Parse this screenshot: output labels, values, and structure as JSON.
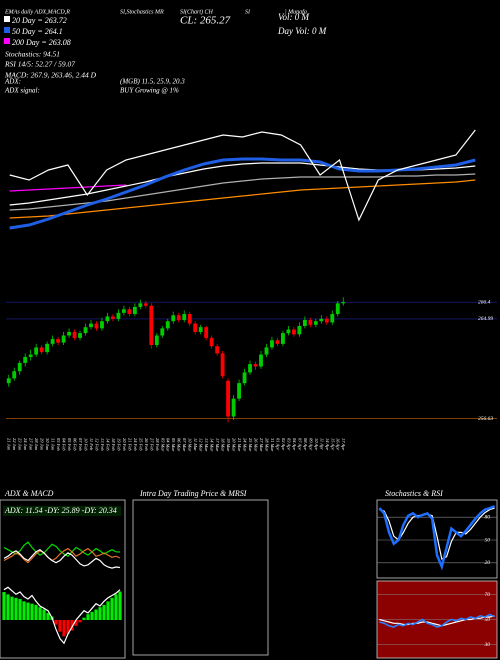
{
  "chart_data": [
    {
      "type": "line",
      "background": "#000000",
      "ylim": [
        255,
        270
      ],
      "annotations": [
        "EMAs daily ADX,MACD,R",
        "SI,Stochastics MR",
        "SI(Chart) CH",
        "SI",
        "| Munafa",
        "20 Day = 263.72",
        "50 Day = 264.1",
        "200 Day = 263.08",
        "Stochastics: 94.51",
        "RSI 14/5: 52.27 / 59.07",
        "MACD: 267.9, 263.46, 2.44 D",
        "ADX:",
        "ADX signal:",
        "(MGB) 11.5, 25.9, 20.3",
        "BUY Growing @ 1%",
        "CL: 265.27",
        "Vol: 0 M",
        "Day Vol: 0 M"
      ],
      "series": [
        {
          "color": "#ff00ff",
          "values": [
            260.4,
            260.5,
            260.6,
            260.7,
            260.8,
            260.9,
            261.0,
            null,
            null,
            null,
            null,
            null,
            null,
            null,
            null,
            null,
            null,
            null,
            null,
            null,
            null,
            null,
            null,
            null,
            null
          ]
        },
        {
          "color": "#ff8c00",
          "values": [
            257.7,
            257.8,
            257.9,
            258.1,
            258.3,
            258.5,
            258.7,
            258.9,
            259.1,
            259.3,
            259.5,
            259.7,
            259.9,
            260.1,
            260.3,
            260.5,
            260.6,
            260.7,
            260.8,
            260.9,
            261.0,
            261.1,
            261.2,
            261.3,
            261.5
          ]
        },
        {
          "color": "#b0b0b0",
          "values": [
            258.5,
            258.6,
            258.8,
            259.0,
            259.2,
            259.4,
            259.7,
            260.0,
            260.3,
            260.6,
            260.9,
            261.2,
            261.4,
            261.6,
            261.7,
            261.8,
            261.8,
            261.8,
            261.8,
            261.8,
            261.9,
            261.9,
            262.0,
            262.0,
            262.1
          ]
        },
        {
          "color": "#ffffff",
          "values": [
            259.0,
            259.2,
            259.5,
            259.8,
            260.1,
            260.5,
            260.9,
            261.3,
            261.8,
            262.2,
            262.6,
            262.9,
            263.1,
            263.2,
            263.2,
            263.2,
            263.0,
            262.8,
            262.6,
            262.5,
            262.5,
            262.5,
            262.6,
            262.7,
            262.9
          ]
        },
        {
          "color": "#1e5fe6",
          "values": [
            256.7,
            257.0,
            257.6,
            258.3,
            259.0,
            259.6,
            260.3,
            261.0,
            261.8,
            262.5,
            263.1,
            263.5,
            263.6,
            263.6,
            263.5,
            263.5,
            263.3,
            262.6,
            262.4,
            262.4,
            262.5,
            262.6,
            262.8,
            263.0,
            263.5
          ]
        },
        {
          "color": "#ffffff",
          "values": [
            262.0,
            261.5,
            262.5,
            263.0,
            260.0,
            262.5,
            263.5,
            264.0,
            264.5,
            265.0,
            265.5,
            266.0,
            265.8,
            266.3,
            266.0,
            265.0,
            262.0,
            263.5,
            257.5,
            261.5,
            262.5,
            263.0,
            263.5,
            264.0,
            266.5
          ]
        }
      ]
    },
    {
      "type": "candlestick",
      "background": "#000000",
      "up_color": "#00cc00",
      "down_color": "#ff0000",
      "ylim": [
        255.5,
        267
      ],
      "yticks": [
        266.4,
        264.99,
        256.63
      ],
      "categories": [
        "21 Jan",
        "22 Jan",
        "23 Jan",
        "24 Jan",
        "27 Jan",
        "28 Jan",
        "29 Jan",
        "30 Jan",
        "31 Jan",
        "03 Feb",
        "04 Feb",
        "05 Feb",
        "06 Feb",
        "07 Feb",
        "10 Feb",
        "11 Feb",
        "12 Feb",
        "13 Feb",
        "14 Feb",
        "18 Feb",
        "19 Feb",
        "20 Feb",
        "21 Feb",
        "24 Feb",
        "25 Feb",
        "26 Feb",
        "27 Feb",
        "28 Feb",
        "03 Mar",
        "04 Mar",
        "05 Mar",
        "06 Mar",
        "07 Mar",
        "10 Mar",
        "11 Mar",
        "12 Mar",
        "13 Mar",
        "14 Mar",
        "17 Mar",
        "18 Mar",
        "19 Mar",
        "20 Mar",
        "21 Mar",
        "24 Mar",
        "25 Mar",
        "26 Mar",
        "27 Mar",
        "28 Mar",
        "31 Mar",
        "01 Apr",
        "02 Apr",
        "03 Apr",
        "04 Apr",
        "07 Apr",
        "08 Apr",
        "09 Apr",
        "10 Apr",
        "11 Apr",
        "14 Apr",
        "15 Apr",
        "16 Apr",
        "17 Apr"
      ],
      "candles": [
        [
          259.6,
          260.3,
          259.3,
          260.0
        ],
        [
          260.0,
          260.9,
          259.8,
          260.6
        ],
        [
          260.6,
          261.5,
          260.3,
          261.3
        ],
        [
          261.3,
          262.1,
          261.0,
          261.8
        ],
        [
          261.8,
          262.4,
          261.5,
          262.0
        ],
        [
          262.0,
          262.9,
          261.8,
          262.6
        ],
        [
          262.6,
          262.8,
          262.0,
          262.2
        ],
        [
          262.2,
          263.1,
          262.0,
          262.9
        ],
        [
          262.9,
          263.6,
          262.7,
          263.3
        ],
        [
          263.3,
          263.5,
          262.8,
          263.0
        ],
        [
          263.0,
          263.9,
          262.8,
          263.6
        ],
        [
          263.6,
          264.2,
          263.4,
          263.9
        ],
        [
          263.9,
          264.1,
          263.2,
          263.4
        ],
        [
          263.4,
          264.0,
          263.2,
          263.8
        ],
        [
          263.8,
          264.6,
          263.6,
          264.3
        ],
        [
          264.3,
          264.9,
          264.1,
          264.6
        ],
        [
          264.6,
          264.8,
          264.0,
          264.2
        ],
        [
          264.2,
          265.1,
          264.0,
          264.8
        ],
        [
          264.8,
          265.5,
          264.6,
          265.2
        ],
        [
          265.2,
          265.4,
          264.8,
          265.0
        ],
        [
          265.0,
          265.8,
          264.8,
          265.5
        ],
        [
          265.5,
          266.1,
          265.3,
          265.8
        ],
        [
          265.8,
          266.0,
          265.2,
          265.4
        ],
        [
          265.4,
          266.3,
          265.2,
          266.0
        ],
        [
          266.0,
          266.6,
          265.8,
          266.3
        ],
        [
          266.3,
          266.5,
          265.9,
          266.1
        ],
        [
          266.1,
          266.3,
          262.5,
          262.8
        ],
        [
          262.8,
          263.8,
          262.6,
          263.6
        ],
        [
          263.6,
          264.4,
          263.4,
          264.2
        ],
        [
          264.2,
          265.0,
          264.0,
          264.8
        ],
        [
          264.8,
          265.6,
          264.6,
          265.3
        ],
        [
          265.3,
          265.5,
          264.7,
          264.9
        ],
        [
          264.9,
          265.7,
          264.7,
          265.4
        ],
        [
          265.4,
          265.6,
          264.4,
          264.6
        ],
        [
          264.6,
          264.8,
          263.7,
          263.9
        ],
        [
          263.9,
          264.5,
          263.7,
          264.3
        ],
        [
          264.3,
          264.4,
          263.2,
          263.4
        ],
        [
          263.4,
          263.6,
          262.5,
          262.7
        ],
        [
          262.7,
          262.9,
          261.9,
          262.1
        ],
        [
          262.1,
          262.3,
          260.0,
          260.2
        ],
        [
          259.8,
          260.0,
          256.3,
          256.8
        ],
        [
          256.8,
          258.6,
          256.5,
          258.3
        ],
        [
          258.3,
          259.9,
          258.1,
          259.6
        ],
        [
          259.6,
          260.8,
          259.4,
          260.5
        ],
        [
          260.5,
          261.5,
          260.3,
          261.2
        ],
        [
          261.2,
          261.4,
          260.7,
          261.0
        ],
        [
          261.0,
          262.3,
          260.8,
          262.0
        ],
        [
          262.0,
          262.9,
          261.8,
          262.6
        ],
        [
          262.6,
          263.5,
          262.4,
          263.2
        ],
        [
          263.2,
          263.4,
          262.7,
          262.9
        ],
        [
          262.9,
          264.0,
          262.7,
          263.8
        ],
        [
          263.8,
          264.4,
          263.6,
          264.1
        ],
        [
          264.1,
          264.3,
          263.5,
          263.7
        ],
        [
          263.7,
          264.7,
          263.5,
          264.4
        ],
        [
          264.4,
          265.2,
          264.2,
          264.9
        ],
        [
          264.9,
          265.1,
          264.3,
          264.5
        ],
        [
          264.5,
          265.0,
          264.3,
          264.8
        ],
        [
          264.8,
          265.3,
          264.6,
          265.0
        ],
        [
          265.0,
          265.2,
          264.5,
          264.7
        ],
        [
          264.7,
          265.7,
          264.5,
          265.4
        ],
        [
          265.4,
          266.5,
          265.2,
          266.3
        ],
        [
          266.3,
          266.8,
          266.1,
          266.4
        ]
      ]
    },
    {
      "type": "line",
      "title": "ADX & MACD",
      "background": "#000000",
      "ylim": [
        0,
        60
      ],
      "annotations": [
        "ADX: 11.54 -DY: 25.89 -DY: 20.34"
      ],
      "series": [
        {
          "color": "#00dd00",
          "values": [
            30,
            28,
            26,
            24,
            27,
            32,
            35,
            30,
            26,
            23,
            25,
            29,
            33,
            31,
            27,
            24,
            22,
            26,
            30,
            28,
            25,
            23,
            26,
            29,
            27,
            24,
            26,
            28,
            26,
            25.89
          ]
        },
        {
          "color": "#e0702a",
          "values": [
            18,
            20,
            22,
            25,
            23,
            19,
            16,
            20,
            24,
            27,
            25,
            21,
            18,
            20,
            24,
            27,
            29,
            26,
            22,
            24,
            27,
            29,
            26,
            22,
            23,
            25,
            23,
            21,
            22,
            20.34
          ]
        },
        {
          "color": "#ffffff",
          "values": [
            20,
            22,
            25,
            27,
            24,
            20,
            18,
            22,
            26,
            28,
            25,
            21,
            18,
            16,
            18,
            22,
            25,
            23,
            19,
            15,
            13,
            14,
            17,
            20,
            18,
            14,
            12,
            11,
            12,
            11.54
          ]
        }
      ]
    },
    {
      "type": "bar",
      "background": "#000000",
      "ylim": [
        -3,
        3
      ],
      "positive_color": "#00ee00",
      "negative_color": "#ff0000",
      "values": [
        2.4,
        2.2,
        2.0,
        1.9,
        1.8,
        1.6,
        1.5,
        1.4,
        1.3,
        1.1,
        0.9,
        0.6,
        0.3,
        -0.4,
        -1.0,
        -1.4,
        -1.2,
        -0.9,
        -0.5,
        -0.2,
        0.2,
        0.5,
        0.7,
        0.9,
        1.1,
        1.3,
        1.6,
        1.9,
        2.2,
        2.44
      ],
      "series": [
        {
          "color": "#ffffff",
          "values": [
            2.6,
            2.8,
            2.5,
            2.2,
            2.4,
            2.0,
            1.8,
            2.1,
            1.6,
            1.2,
            1.0,
            0.8,
            0.2,
            -0.8,
            -1.6,
            -2.0,
            -1.2,
            -0.6,
            0.0,
            0.4,
            0.8,
            0.6,
            1.0,
            1.4,
            1.2,
            1.6,
            1.9,
            2.1,
            2.3,
            2.6
          ]
        }
      ]
    },
    {
      "type": "line",
      "title": "Intra Day Trading Price & MRSI",
      "background": "#000000"
    },
    {
      "type": "line",
      "title": "Stochastics & RSI",
      "background": "#000000",
      "ylim": [
        0,
        100
      ],
      "yticks": [
        20,
        50,
        80
      ],
      "series": [
        {
          "color": "#ffffff",
          "values": [
            90,
            88,
            75,
            55,
            50,
            60,
            72,
            80,
            82,
            83,
            84,
            82,
            55,
            25,
            28,
            48,
            60,
            60,
            58,
            64,
            72,
            80,
            86,
            90,
            92
          ]
        },
        {
          "color": "#1e6fff",
          "values": [
            92,
            85,
            60,
            45,
            50,
            70,
            82,
            85,
            80,
            83,
            85,
            78,
            30,
            15,
            40,
            65,
            60,
            55,
            62,
            70,
            78,
            85,
            90,
            92,
            94.51
          ]
        }
      ]
    },
    {
      "type": "line",
      "background": "#8b0000",
      "ylim": [
        20,
        80
      ],
      "yticks": [
        30,
        50,
        70
      ],
      "series": [
        {
          "color": "#ffffff",
          "values": [
            50,
            49,
            48,
            47,
            47,
            46,
            46,
            47,
            47,
            48,
            48,
            47,
            46,
            45,
            46,
            47,
            48,
            49,
            50,
            50,
            51,
            51,
            52,
            52,
            53
          ]
        },
        {
          "color": "#2a7fff",
          "values": [
            48,
            47,
            45,
            44,
            46,
            45,
            47,
            46,
            48,
            50,
            47,
            46,
            44,
            45,
            48,
            50,
            49,
            51,
            50,
            52,
            51,
            53,
            52,
            54,
            52.27
          ]
        }
      ]
    }
  ]
}
